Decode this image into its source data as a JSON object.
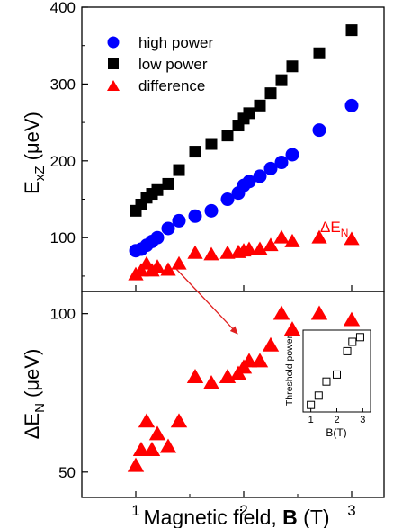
{
  "chart_data": [
    {
      "type": "scatter",
      "panel": "top",
      "xlim": [
        0.5,
        3.3
      ],
      "ylim": [
        30,
        400
      ],
      "y_ticks": [
        100,
        200,
        300,
        400
      ],
      "x_ticks": [
        1,
        2,
        3
      ],
      "grid": false,
      "legend_position": "top-left",
      "annotation": "ΔE_N",
      "series": [
        {
          "name": "high power",
          "marker": "circle",
          "color": "#0000ff",
          "x": [
            1.0,
            1.05,
            1.1,
            1.15,
            1.2,
            1.3,
            1.4,
            1.55,
            1.7,
            1.85,
            1.95,
            2.0,
            2.05,
            2.15,
            2.25,
            2.35,
            2.45,
            2.7,
            3.0
          ],
          "y": [
            83,
            85,
            90,
            95,
            100,
            112,
            122,
            128,
            135,
            150,
            158,
            168,
            173,
            180,
            190,
            198,
            208,
            240,
            272
          ]
        },
        {
          "name": "low power",
          "marker": "square",
          "color": "#000000",
          "x": [
            1.0,
            1.05,
            1.1,
            1.15,
            1.2,
            1.3,
            1.4,
            1.55,
            1.7,
            1.85,
            1.95,
            2.0,
            2.05,
            2.15,
            2.25,
            2.35,
            2.45,
            2.7,
            3.0
          ],
          "y": [
            135,
            143,
            152,
            157,
            162,
            170,
            188,
            212,
            222,
            233,
            246,
            255,
            262,
            272,
            288,
            305,
            323,
            340,
            370
          ]
        },
        {
          "name": "difference",
          "marker": "triangle",
          "color": "#ff0000",
          "x": [
            1.0,
            1.05,
            1.1,
            1.15,
            1.2,
            1.3,
            1.4,
            1.55,
            1.7,
            1.85,
            1.95,
            2.0,
            2.05,
            2.15,
            2.25,
            2.35,
            2.45,
            2.7,
            3.0
          ],
          "y": [
            52,
            57,
            66,
            57,
            62,
            58,
            66,
            80,
            78,
            80,
            81,
            83,
            85,
            85,
            90,
            100,
            95,
            100,
            98
          ]
        }
      ]
    },
    {
      "type": "scatter",
      "panel": "bottom",
      "xlim": [
        0.5,
        3.3
      ],
      "ylim": [
        42,
        107
      ],
      "y_ticks": [
        50,
        100
      ],
      "x_ticks": [
        1,
        2,
        3
      ],
      "xlabel": "Magnetic field, ",
      "xlabel_bold": "B",
      "xlabel_unit": " (T)",
      "ylabel": "ΔE_N (μeV)",
      "grid": false,
      "series": [
        {
          "marker": "triangle",
          "color": "#ff0000",
          "x": [
            1.0,
            1.05,
            1.1,
            1.15,
            1.2,
            1.3,
            1.4,
            1.55,
            1.7,
            1.85,
            1.95,
            2.0,
            2.05,
            2.15,
            2.25,
            2.35,
            2.45,
            2.7,
            3.0
          ],
          "y": [
            52,
            57,
            66,
            57,
            62,
            58,
            66,
            80,
            78,
            80,
            81,
            83,
            85,
            85,
            90,
            100,
            95,
            100,
            98
          ]
        }
      ]
    },
    {
      "type": "scatter",
      "panel": "inset",
      "xlim": [
        0.7,
        3.3
      ],
      "ylim": [
        0,
        35
      ],
      "x_ticks": [
        1,
        2,
        3
      ],
      "xlabel": "B(T)",
      "ylabel": "Threshold power",
      "series": [
        {
          "marker": "open-square",
          "color": "#000000",
          "x": [
            1.0,
            1.3,
            1.6,
            2.0,
            2.4,
            2.6,
            2.9
          ],
          "y": [
            3,
            7,
            13,
            16,
            26,
            30,
            32
          ]
        }
      ]
    }
  ],
  "top_ylabel": {
    "main": "E",
    "sub": "xZ",
    "unit": " (μeV)"
  }
}
